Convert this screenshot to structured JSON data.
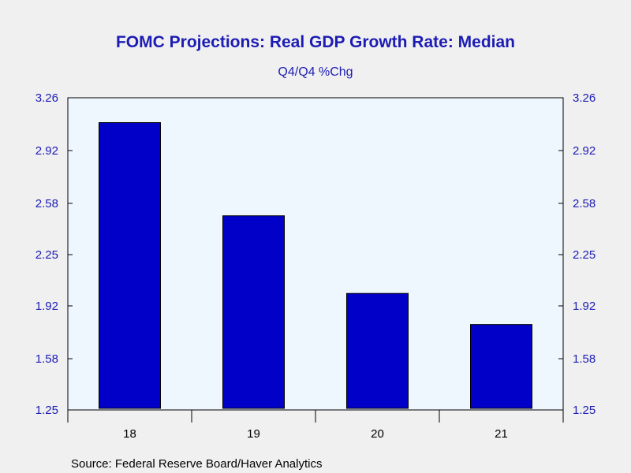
{
  "chart_data": {
    "type": "bar",
    "title": "FOMC Projections: Real GDP Growth Rate: Median",
    "subtitle": "Q4/Q4 %Chg",
    "categories": [
      "18",
      "19",
      "20",
      "21"
    ],
    "values": [
      3.1,
      2.5,
      2.0,
      1.8
    ],
    "ylim": [
      1.25,
      3.26
    ],
    "yticks": [
      "3.26",
      "2.92",
      "2.58",
      "2.25",
      "1.92",
      "1.58",
      "1.25"
    ],
    "xlabel": "",
    "ylabel": "",
    "grid": false,
    "legend": "none",
    "source": "Source:  Federal Reserve Board/Haver Analytics",
    "colors": {
      "bar_fill": "#0000c8",
      "bar_stroke": "#000000",
      "plot_bg": "#eef6fe",
      "page_bg": "#f0f0f0",
      "text_blue": "#1c1cb4"
    }
  }
}
